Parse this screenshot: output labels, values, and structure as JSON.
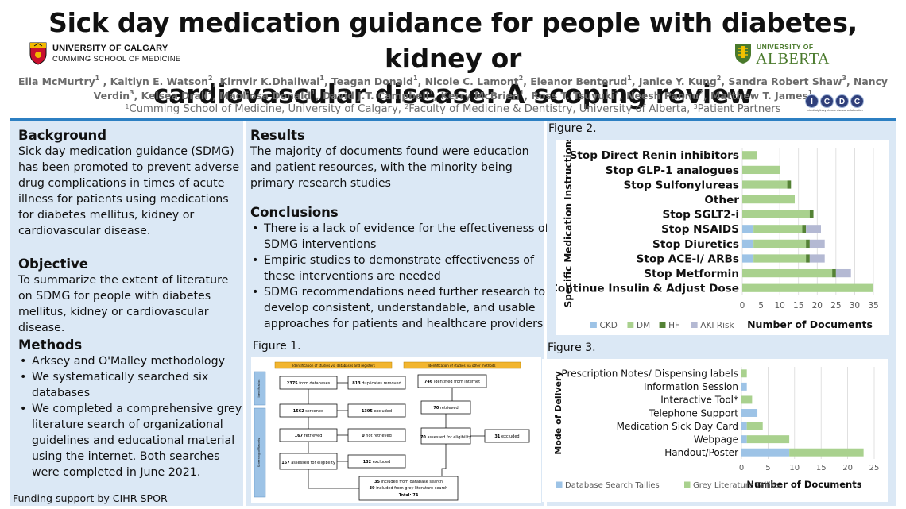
{
  "header": {
    "title_line1": "Sick day medication guidance for people with diabetes, kidney or",
    "title_line2": "cardiovascular disease: A scoping review",
    "authors": [
      {
        "name": "Ella McMurtry",
        "sup": "1"
      },
      {
        "name": "Kaitlyn E. Watson",
        "sup": "2"
      },
      {
        "name": "Kirnvir K.Dhaliwal",
        "sup": "1"
      },
      {
        "name": "Teagan Donald",
        "sup": "1"
      },
      {
        "name": "Nicole C. Lamont",
        "sup": "2"
      },
      {
        "name": "Eleanor Benterud",
        "sup": "1"
      },
      {
        "name": "Janice Y. Kung",
        "sup": "2"
      },
      {
        "name": "Sandra Robert Shaw",
        "sup": "3"
      },
      {
        "name": "Nancy Verdin",
        "sup": "3"
      },
      {
        "name": "Kelsea Drall",
        "sup": "2"
      },
      {
        "name": "Maoliosa Donald",
        "sup": "1"
      },
      {
        "name": "David J.T. Campbell",
        "sup": "1"
      },
      {
        "name": "Kerry McBrien",
        "sup": "1"
      },
      {
        "name": "Ross T. Tsuyuki",
        "sup": "2"
      },
      {
        "name": "Neesh Pannu",
        "sup": "2"
      },
      {
        "name": "Matthew T. James",
        "sup": "1"
      }
    ],
    "affiliations": [
      {
        "sup": "1",
        "text": "Cumming School of Medicine, University of Calgary, "
      },
      {
        "sup": "2",
        "text": "Faculty of Medicine & Dentistry, University of Alberta, "
      },
      {
        "sup": "3",
        "text": "Patient Partners"
      }
    ]
  },
  "logos": {
    "calgary": {
      "name": "UNIVERSITY OF CALGARY",
      "sub": "CUMMING SCHOOL OF MEDICINE",
      "icon": "calgary-shield-icon",
      "color": "#c8102e"
    },
    "alberta": {
      "top": "UNIVERSITY OF",
      "bottom": "ALBERTA",
      "icon": "alberta-crest-icon",
      "color": "#4a7a2c"
    },
    "icdc": {
      "letters": [
        "I",
        "C",
        "D",
        "C"
      ],
      "sub": "interdisciplinary chronic disease collaboration"
    }
  },
  "left": {
    "background": {
      "heading": "Background",
      "text": "Sick day medication guidance (SDMG) has been promoted to prevent adverse drug complications in times of acute illness for patients using medications for diabetes mellitus, kidney or cardiovascular disease."
    },
    "objective": {
      "heading": "Objective",
      "text": "To summarize the extent of literature on SDMG for people with diabetes mellitus, kidney or cardiovascular disease."
    },
    "methods": {
      "heading": "Methods",
      "items": [
        "Arksey and O'Malley methodology",
        "We systematically searched six databases",
        "We completed a comprehensive grey literature search of organizational guidelines and educational material using the internet. Both searches were completed in June 2021."
      ]
    },
    "funding": "Funding support by CIHR SPOR"
  },
  "middle": {
    "results": {
      "heading": "Results",
      "text": "The majority of documents found were education and patient resources, with the minority being primary research studies"
    },
    "conclusions": {
      "heading": "Conclusions",
      "items": [
        "There is a lack of evidence for the effectiveness of SDMG interventions",
        "Empiric studies to demonstrate effectiveness of these interventions are needed",
        "SDMG recommendations need further research to develop consistent, understandable, and usable approaches for patients and healthcare providers"
      ]
    },
    "figure1": {
      "label": "Figure 1.",
      "header_left": "Identification of studies via databases and registers",
      "header_right": "Identification of studies via other methods",
      "side_labels": [
        "Identification",
        "Screening of Reports"
      ],
      "boxes": {
        "db_records": {
          "num": "2375",
          "text": " from databases"
        },
        "duplicates": {
          "num": "813",
          "text": " duplicates removed"
        },
        "screened": {
          "num": "1562",
          "text": " screened"
        },
        "excluded1": {
          "num": "1395",
          "text": " excluded"
        },
        "retrieved": {
          "num": "167",
          "text": " retrieved"
        },
        "not_retrieved": {
          "num": "0",
          "text": " not retrieved"
        },
        "assessed": {
          "num": "167",
          "text": " assessed for eligibility"
        },
        "excluded2": {
          "num": "132",
          "text": " excluded"
        },
        "internet": {
          "num": "746",
          "text": " identified from internet"
        },
        "retrieved2": {
          "num": "70",
          "text": " retrieved"
        },
        "assessed2": {
          "num": "70",
          "text": " assessed for eligibility"
        },
        "excluded3": {
          "num": "31",
          "text": " excluded"
        },
        "included_db": {
          "num": "35",
          "text": " included from database search"
        },
        "included_grey": {
          "num": "39",
          "text": " included from grey literature search"
        },
        "total": "Total: 74"
      }
    }
  },
  "chart_data": [
    {
      "id": "figure2",
      "label": "Figure 2.",
      "type": "bar",
      "orientation": "horizontal",
      "stacked": true,
      "categories": [
        "Stop Direct Renin inhibitors",
        "Stop GLP-1 analogues",
        "Stop Sulfonylureas",
        "Other",
        "Stop SGLT2-i",
        "Stop NSAIDS",
        "Stop Diuretics",
        "Stop ACE-i/ ARBs",
        "Stop Metformin",
        "Continue Insulin & Adjust Dose"
      ],
      "series": [
        {
          "name": "CKD",
          "color": "#9dc3e6",
          "values": [
            0,
            0,
            0,
            0,
            0,
            3,
            3,
            3,
            0,
            0
          ]
        },
        {
          "name": "DM",
          "color": "#a9d18e",
          "values": [
            4,
            10,
            12,
            14,
            18,
            13,
            14,
            14,
            24,
            35
          ]
        },
        {
          "name": "HF",
          "color": "#548235",
          "values": [
            0,
            0,
            1,
            0,
            1,
            1,
            1,
            1,
            1,
            0
          ]
        },
        {
          "name": "AKI Risk",
          "color": "#b4b9d3",
          "values": [
            0,
            0,
            0,
            0,
            0,
            4,
            4,
            4,
            4,
            0
          ]
        }
      ],
      "ylabel": "Specific Medication Instructions",
      "xlabel": "Number of Documents",
      "xticks": [
        0,
        5,
        10,
        15,
        20,
        25,
        30,
        35
      ],
      "xlim": [
        0,
        35
      ],
      "grid": true,
      "legend": "bottom"
    },
    {
      "id": "figure3",
      "label": "Figure 3.",
      "type": "bar",
      "orientation": "horizontal",
      "stacked": true,
      "categories": [
        "Prescription Notes/ Dispensing labels",
        "Information Session",
        "Interactive Tool*",
        "Telephone Support",
        "Medication Sick Day Card",
        "Webpage",
        "Handout/Poster"
      ],
      "series": [
        {
          "name": "Database Search Tallies",
          "color": "#9dc3e6",
          "values": [
            0,
            1,
            0,
            3,
            1,
            1,
            9
          ]
        },
        {
          "name": "Grey Literature Tallies",
          "color": "#a9d18e",
          "values": [
            1,
            0,
            2,
            0,
            3,
            8,
            14
          ]
        }
      ],
      "ylabel": "Mode of Delivery",
      "xlabel": "Number of Documents",
      "xticks": [
        0,
        5,
        10,
        15,
        20,
        25
      ],
      "xlim": [
        0,
        25
      ],
      "grid": true,
      "legend": "bottom"
    }
  ]
}
